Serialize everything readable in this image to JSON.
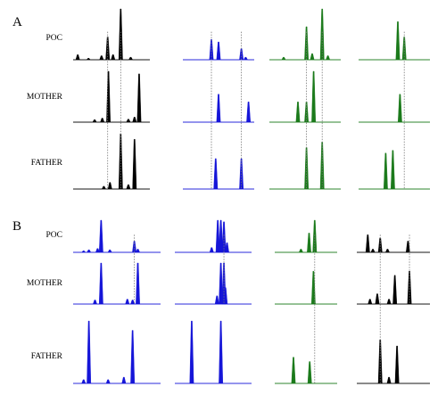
{
  "panels": [
    {
      "letter": "A",
      "rows": [
        "POC",
        "MOTHER",
        "FATHER"
      ],
      "lanes": [
        {
          "color": "#000000",
          "peaks": [
            [
              [
                0.06,
                0.1
              ],
              [
                0.2,
                0.03
              ],
              [
                0.37,
                0.08
              ],
              [
                0.45,
                0.45
              ],
              [
                0.52,
                0.1
              ],
              [
                0.62,
                1.0
              ],
              [
                0.75,
                0.05
              ]
            ],
            [
              [
                0.28,
                0.05
              ],
              [
                0.38,
                0.08
              ],
              [
                0.46,
                1.0
              ],
              [
                0.72,
                0.06
              ],
              [
                0.8,
                0.1
              ],
              [
                0.86,
                0.95
              ]
            ],
            [
              [
                0.4,
                0.05
              ],
              [
                0.48,
                0.12
              ],
              [
                0.62,
                1.0
              ],
              [
                0.72,
                0.08
              ],
              [
                0.8,
                0.9
              ]
            ]
          ]
        },
        {
          "color": "#1515d8",
          "peaks": [
            [
              [
                0.4,
                0.4
              ],
              [
                0.5,
                0.35
              ],
              [
                0.82,
                0.22
              ],
              [
                0.88,
                0.05
              ]
            ],
            [
              [
                0.5,
                0.55
              ],
              [
                0.92,
                0.4
              ]
            ],
            [
              [
                0.46,
                0.55
              ],
              [
                0.82,
                0.55
              ]
            ]
          ]
        },
        {
          "color": "#1b7a1b",
          "peaks": [
            [
              [
                0.2,
                0.05
              ],
              [
                0.52,
                0.65
              ],
              [
                0.6,
                0.12
              ],
              [
                0.74,
                1.0
              ],
              [
                0.82,
                0.08
              ]
            ],
            [
              [
                0.4,
                0.4
              ],
              [
                0.52,
                0.4
              ],
              [
                0.62,
                1.0
              ]
            ],
            [
              [
                0.52,
                0.75
              ],
              [
                0.74,
                0.85
              ]
            ]
          ]
        },
        {
          "color": "#1b7a1b",
          "peaks": [
            [
              [
                0.55,
                0.75
              ],
              [
                0.64,
                0.45
              ]
            ],
            [
              [
                0.58,
                0.55
              ]
            ],
            [
              [
                0.38,
                0.65
              ],
              [
                0.48,
                0.7
              ]
            ]
          ]
        }
      ],
      "dashed": [
        [
          0,
          0.45,
          0,
          2
        ],
        [
          0,
          0.62,
          0,
          2
        ],
        [
          1,
          0.4,
          0,
          2
        ],
        [
          1,
          0.82,
          0,
          2
        ],
        [
          2,
          0.52,
          0,
          2
        ],
        [
          2,
          0.74,
          0,
          2
        ],
        [
          3,
          0.64,
          0,
          2
        ]
      ]
    },
    {
      "letter": "B",
      "rows": [
        "POC",
        "MOTHER",
        "FATHER"
      ],
      "lanes": [
        {
          "color": "#1515d8",
          "peaks": [
            [
              [
                0.12,
                0.05
              ],
              [
                0.18,
                0.08
              ],
              [
                0.28,
                0.12
              ],
              [
                0.32,
                1.0
              ],
              [
                0.42,
                0.08
              ],
              [
                0.7,
                0.35
              ],
              [
                0.74,
                0.1
              ]
            ],
            [
              [
                0.25,
                0.1
              ],
              [
                0.32,
                1.0
              ],
              [
                0.62,
                0.12
              ],
              [
                0.68,
                0.1
              ],
              [
                0.74,
                1.0
              ]
            ],
            [
              [
                0.12,
                0.06
              ],
              [
                0.18,
                1.0
              ],
              [
                0.4,
                0.06
              ],
              [
                0.58,
                0.1
              ],
              [
                0.68,
                0.85
              ]
            ]
          ]
        },
        {
          "color": "#1515d8",
          "peaks": [
            [
              [
                0.48,
                0.15
              ],
              [
                0.56,
                1.0
              ],
              [
                0.6,
                1.0
              ],
              [
                0.64,
                0.95
              ],
              [
                0.68,
                0.3
              ]
            ],
            [
              [
                0.55,
                0.2
              ],
              [
                0.6,
                1.0
              ],
              [
                0.64,
                1.0
              ],
              [
                0.66,
                0.4
              ]
            ],
            [
              [
                0.22,
                1.0
              ],
              [
                0.6,
                1.0
              ]
            ]
          ]
        },
        {
          "color": "#1b7a1b",
          "peaks": [
            [
              [
                0.42,
                0.1
              ],
              [
                0.55,
                0.6
              ],
              [
                0.64,
                1.0
              ]
            ],
            [
              [
                0.62,
                0.8
              ]
            ],
            [
              [
                0.3,
                0.42
              ],
              [
                0.56,
                0.35
              ]
            ]
          ]
        },
        {
          "color": "#000000",
          "peaks": [
            [
              [
                0.15,
                0.55
              ],
              [
                0.22,
                0.1
              ],
              [
                0.32,
                0.45
              ],
              [
                0.42,
                0.1
              ],
              [
                0.7,
                0.35
              ]
            ],
            [
              [
                0.18,
                0.12
              ],
              [
                0.28,
                0.25
              ],
              [
                0.44,
                0.12
              ],
              [
                0.52,
                0.7
              ],
              [
                0.72,
                0.8
              ]
            ],
            [
              [
                0.32,
                0.7
              ],
              [
                0.44,
                0.1
              ],
              [
                0.55,
                0.6
              ]
            ]
          ]
        }
      ],
      "dashed": [
        [
          0,
          0.7,
          0,
          1
        ],
        [
          1,
          0.64,
          0,
          1
        ],
        [
          2,
          0.64,
          0,
          2
        ],
        [
          3,
          0.32,
          0,
          2
        ],
        [
          3,
          0.72,
          0,
          1
        ]
      ]
    }
  ]
}
